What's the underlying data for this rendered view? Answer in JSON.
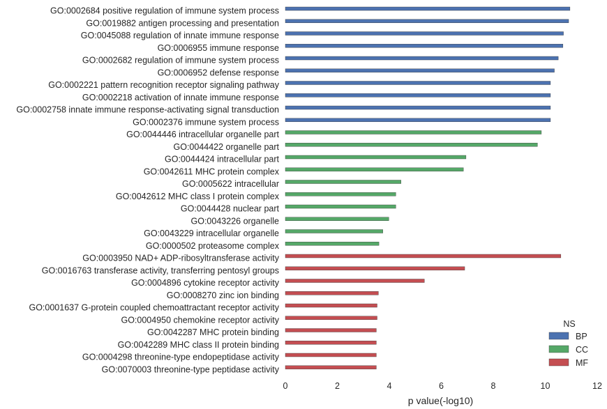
{
  "chart_data": {
    "type": "bar",
    "orientation": "horizontal",
    "xlabel": "p value(-log10)",
    "ylabel": "",
    "xlim": [
      0,
      12
    ],
    "xticks": [
      0,
      2,
      4,
      6,
      8,
      10,
      12
    ],
    "grid": false,
    "legend": {
      "title": "NS",
      "placement": "bottom-right",
      "entries": [
        "BP",
        "CC",
        "MF"
      ]
    },
    "colors": {
      "BP": "#4c72b0",
      "CC": "#55a868",
      "MF": "#c44e52"
    },
    "bars": [
      {
        "label": "GO:0002684 positive regulation of immune system process",
        "value": 10.95,
        "group": "BP"
      },
      {
        "label": "GO:0019882 antigen processing and presentation",
        "value": 10.9,
        "group": "BP"
      },
      {
        "label": "GO:0045088 regulation of innate immune response",
        "value": 10.7,
        "group": "BP"
      },
      {
        "label": "GO:0006955 immune response",
        "value": 10.68,
        "group": "BP"
      },
      {
        "label": "GO:0002682 regulation of immune system process",
        "value": 10.5,
        "group": "BP"
      },
      {
        "label": "GO:0006952 defense response",
        "value": 10.35,
        "group": "BP"
      },
      {
        "label": "GO:0002221 pattern recognition receptor signaling pathway",
        "value": 10.2,
        "group": "BP"
      },
      {
        "label": "GO:0002218 activation of innate immune response",
        "value": 10.2,
        "group": "BP"
      },
      {
        "label": "GO:0002758 innate immune response-activating signal transduction",
        "value": 10.2,
        "group": "BP"
      },
      {
        "label": "GO:0002376 immune system process",
        "value": 10.2,
        "group": "BP"
      },
      {
        "label": "GO:0044446 intracellular organelle part",
        "value": 9.85,
        "group": "CC"
      },
      {
        "label": "GO:0044422 organelle part",
        "value": 9.7,
        "group": "CC"
      },
      {
        "label": "GO:0044424 intracellular part",
        "value": 6.95,
        "group": "CC"
      },
      {
        "label": "GO:0042611 MHC protein complex",
        "value": 6.85,
        "group": "CC"
      },
      {
        "label": "GO:0005622 intracellular",
        "value": 4.45,
        "group": "CC"
      },
      {
        "label": "GO:0042612 MHC class I protein complex",
        "value": 4.25,
        "group": "CC"
      },
      {
        "label": "GO:0044428 nuclear part",
        "value": 4.25,
        "group": "CC"
      },
      {
        "label": "GO:0043226 organelle",
        "value": 3.98,
        "group": "CC"
      },
      {
        "label": "GO:0043229 intracellular organelle",
        "value": 3.75,
        "group": "CC"
      },
      {
        "label": "GO:0000502 proteasome complex",
        "value": 3.6,
        "group": "CC"
      },
      {
        "label": "GO:0003950 NAD+ ADP-ribosyltransferase activity",
        "value": 10.6,
        "group": "MF"
      },
      {
        "label": "GO:0016763 transferase activity, transferring pentosyl groups",
        "value": 6.9,
        "group": "MF"
      },
      {
        "label": "GO:0004896 cytokine receptor activity",
        "value": 5.35,
        "group": "MF"
      },
      {
        "label": "GO:0008270 zinc ion binding",
        "value": 3.58,
        "group": "MF"
      },
      {
        "label": "GO:0001637 G-protein coupled chemoattractant receptor activity",
        "value": 3.53,
        "group": "MF"
      },
      {
        "label": "GO:0004950 chemokine receptor activity",
        "value": 3.53,
        "group": "MF"
      },
      {
        "label": "GO:0042287 MHC protein binding",
        "value": 3.5,
        "group": "MF"
      },
      {
        "label": "GO:0042289 MHC class II protein binding",
        "value": 3.5,
        "group": "MF"
      },
      {
        "label": "GO:0004298 threonine-type endopeptidase activity",
        "value": 3.5,
        "group": "MF"
      },
      {
        "label": "GO:0070003 threonine-type peptidase activity",
        "value": 3.5,
        "group": "MF"
      }
    ]
  }
}
